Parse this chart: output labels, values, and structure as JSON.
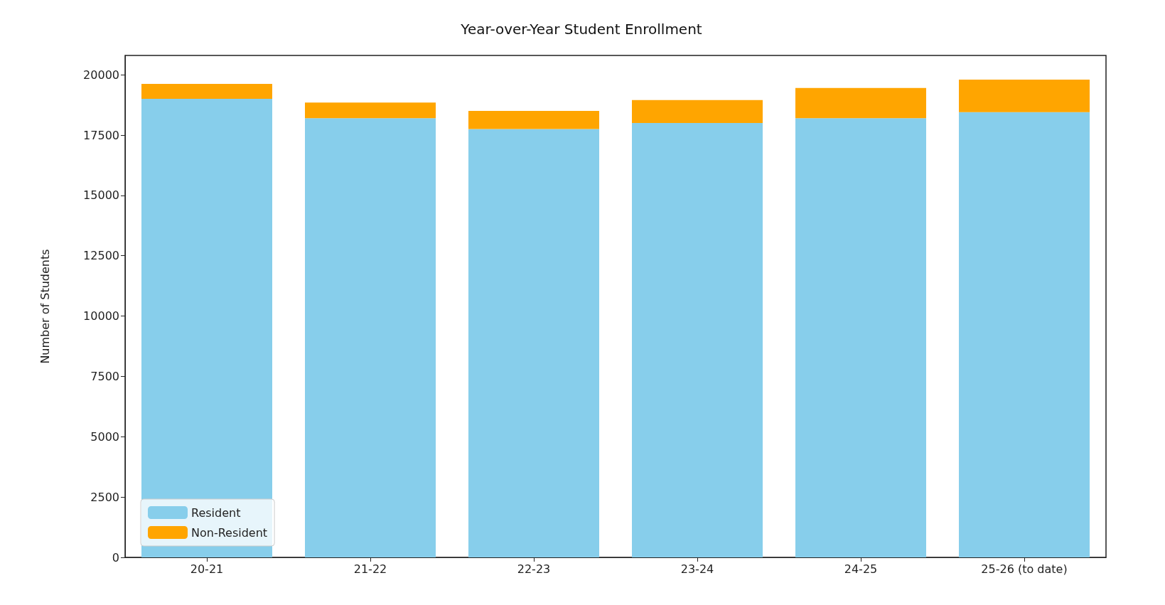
{
  "chart_data": {
    "type": "bar",
    "title": "Year-over-Year Student Enrollment",
    "ylabel": "Number of Students",
    "categories": [
      "20-21",
      "21-22",
      "22-23",
      "23-24",
      "24-25",
      "25-26 (to date)"
    ],
    "stacked": true,
    "series": [
      {
        "name": "Resident",
        "color": "#87ceeb",
        "values": [
          19000,
          18200,
          17750,
          18000,
          18200,
          18450
        ]
      },
      {
        "name": "Non-Resident",
        "color": "#ffa500",
        "values": [
          620,
          650,
          750,
          950,
          1250,
          1350
        ]
      }
    ],
    "ylim": [
      0,
      20800
    ],
    "yticks": [
      0,
      2500,
      5000,
      7500,
      10000,
      12500,
      15000,
      17500,
      20000
    ],
    "grid": false,
    "legend": "bottom left"
  }
}
